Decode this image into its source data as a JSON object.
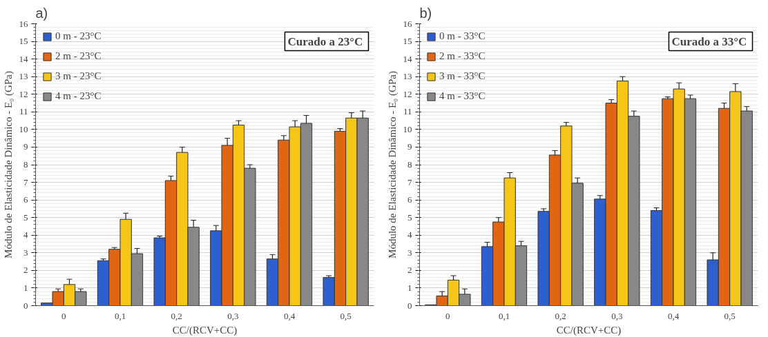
{
  "chart_data": [
    {
      "type": "bar",
      "title": "a)",
      "xlabel": "CC/(RCV+CC)",
      "ylabel": "Módulo de Elasticidade Dinâmico - E₀ (GPa)",
      "categories": [
        "0",
        "0,1",
        "0,2",
        "0,3",
        "0,4",
        "0,5"
      ],
      "ylim": [
        0,
        16
      ],
      "yticks": [
        0,
        1,
        2,
        3,
        4,
        5,
        6,
        7,
        8,
        9,
        10,
        11,
        12,
        13,
        14,
        15,
        16
      ],
      "grid": "y",
      "legend": "top left",
      "annotations": [
        "Curado a  23°C"
      ],
      "series": [
        {
          "name": "0 m - 23°C",
          "color": "#2e5fcf",
          "values": [
            0.15,
            2.55,
            3.85,
            4.25,
            2.65,
            1.6
          ],
          "errors": [
            null,
            0.1,
            0.1,
            0.3,
            0.25,
            0.1
          ]
        },
        {
          "name": "2 m - 23°C",
          "color": "#e06614",
          "values": [
            0.8,
            3.2,
            7.1,
            9.1,
            9.4,
            9.9
          ],
          "errors": [
            0.15,
            0.1,
            0.25,
            0.4,
            0.25,
            0.15
          ]
        },
        {
          "name": "3 m - 23°C",
          "color": "#f5c518",
          "values": [
            1.2,
            4.9,
            8.7,
            10.25,
            10.15,
            10.65
          ],
          "errors": [
            0.3,
            0.35,
            0.3,
            0.25,
            0.35,
            0.3
          ]
        },
        {
          "name": "4 m - 23°C",
          "color": "#888888",
          "values": [
            0.8,
            2.95,
            4.45,
            7.8,
            10.35,
            10.65
          ],
          "errors": [
            0.15,
            0.3,
            0.4,
            0.2,
            0.45,
            0.4
          ]
        }
      ]
    },
    {
      "type": "bar",
      "title": "b)",
      "xlabel": "CC/(RCV+CC)",
      "ylabel": "Módulo de Elasticidade Dinâmico - E₀ (GPa)",
      "categories": [
        "0",
        "0,1",
        "0,2",
        "0,3",
        "0,4",
        "0,5"
      ],
      "ylim": [
        0,
        16
      ],
      "yticks": [
        0,
        1,
        2,
        3,
        4,
        5,
        6,
        7,
        8,
        9,
        10,
        11,
        12,
        13,
        14,
        15,
        16
      ],
      "grid": "y",
      "legend": "top left",
      "annotations": [
        "Curado a  33°C"
      ],
      "series": [
        {
          "name": "0 m - 33°C",
          "color": "#2e5fcf",
          "values": [
            0.05,
            3.35,
            5.35,
            6.05,
            5.4,
            2.6
          ],
          "errors": [
            null,
            0.25,
            0.15,
            0.2,
            0.15,
            0.4
          ]
        },
        {
          "name": "2 m - 33°C",
          "color": "#e06614",
          "values": [
            0.55,
            4.75,
            8.55,
            11.5,
            11.75,
            11.2
          ],
          "errors": [
            0.25,
            0.25,
            0.25,
            0.2,
            0.1,
            0.3
          ]
        },
        {
          "name": "3 m - 33°C",
          "color": "#f5c518",
          "values": [
            1.45,
            7.25,
            10.2,
            12.75,
            12.3,
            12.15
          ],
          "errors": [
            0.25,
            0.3,
            0.2,
            0.25,
            0.35,
            0.45
          ]
        },
        {
          "name": "4 m - 33°C",
          "color": "#888888",
          "values": [
            0.65,
            3.4,
            6.95,
            10.75,
            11.75,
            11.05
          ],
          "errors": [
            0.3,
            0.25,
            0.3,
            0.3,
            0.2,
            0.25
          ]
        }
      ]
    }
  ]
}
